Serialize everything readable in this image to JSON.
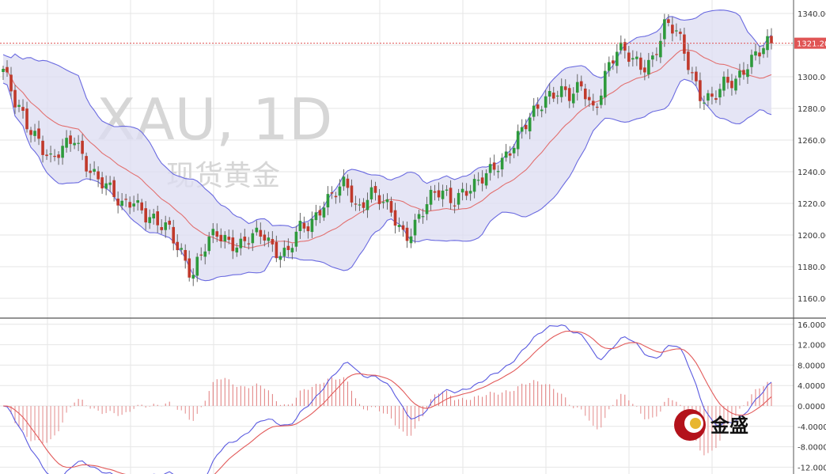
{
  "chart_data": [
    {
      "type": "candlestick",
      "watermark": {
        "symbol": "XAU, 1D",
        "name": "现货黄金"
      },
      "ylim": [
        1150,
        1350
      ],
      "y_ticks": [
        "1340.00",
        "1320.00",
        "1300.00",
        "1280.00",
        "1260.00",
        "1240.00",
        "1220.00",
        "1200.00",
        "1180.00",
        "1160.00"
      ],
      "last_price": "1321.20",
      "close_path": [
        1305,
        1282,
        1270,
        1262,
        1247,
        1252,
        1262,
        1247,
        1235,
        1227,
        1219,
        1225,
        1212,
        1205,
        1205,
        1192,
        1173,
        1190,
        1203,
        1198,
        1192,
        1197,
        1202,
        1192,
        1187,
        1202,
        1207,
        1221,
        1226,
        1231,
        1215,
        1230,
        1222,
        1210,
        1198,
        1211,
        1222,
        1226,
        1222,
        1230,
        1231,
        1237,
        1246,
        1257,
        1267,
        1276,
        1288,
        1294,
        1287,
        1292,
        1278,
        1305,
        1317,
        1311,
        1307,
        1313,
        1332,
        1327,
        1309,
        1289,
        1284,
        1294,
        1299,
        1310,
        1315,
        1321
      ]
    },
    {
      "type": "macd_oscillator",
      "y_ticks": [
        "16.0000",
        "12.0000",
        "8.0000",
        "4.0000",
        "0.0000",
        "-4.0000",
        "-8.0000",
        "-12.0000"
      ]
    }
  ],
  "brand": {
    "name": "金盛"
  }
}
